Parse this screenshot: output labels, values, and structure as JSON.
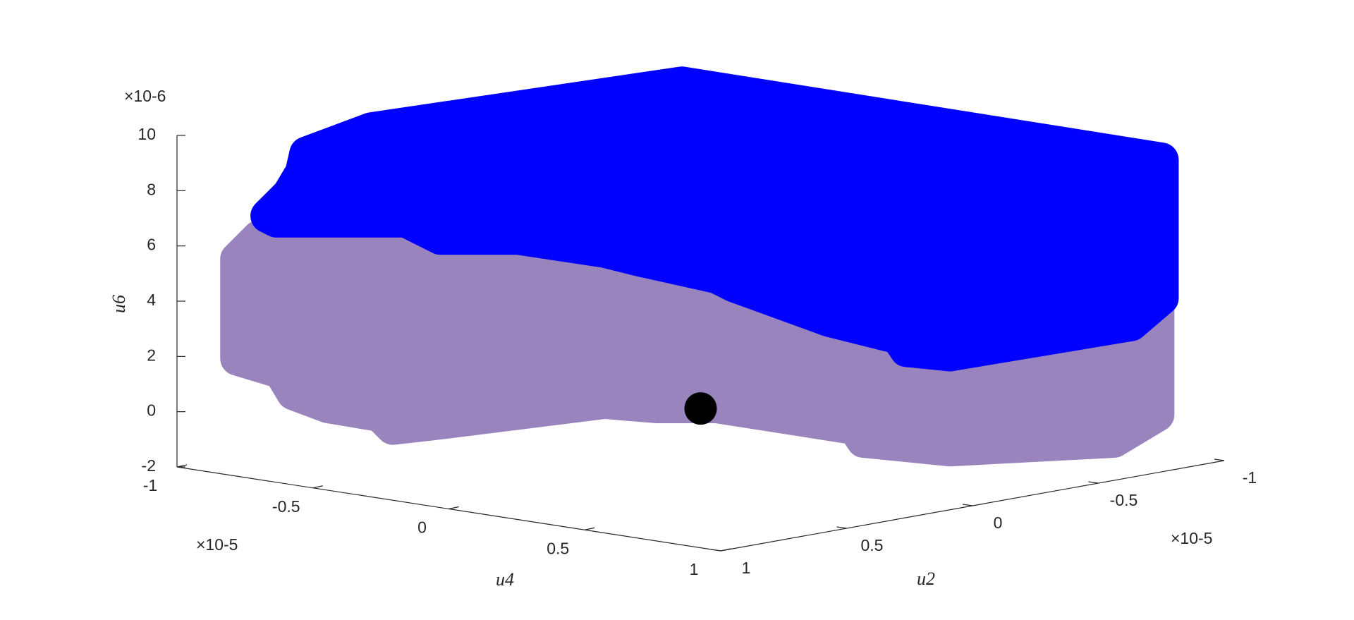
{
  "chart_data": {
    "type": "scatter3d",
    "x_label": "u4",
    "y_label": "u2",
    "z_label": "u6",
    "x_multiplier": "×10-5",
    "y_multiplier": "×10-5",
    "z_multiplier": "×10-6",
    "xlim": [
      -1,
      1
    ],
    "ylim": [
      -1,
      1
    ],
    "zlim": [
      -2,
      10
    ],
    "xticks": [
      -1,
      -0.5,
      0,
      0.5,
      1
    ],
    "yticks": [
      -1,
      -0.5,
      0,
      0.5,
      1
    ],
    "zticks": [
      -2,
      0,
      2,
      4,
      6,
      8,
      10
    ],
    "series": [
      {
        "color": "#000000",
        "x": [
          0
        ],
        "y": [
          0
        ],
        "z": [
          0
        ]
      }
    ]
  }
}
